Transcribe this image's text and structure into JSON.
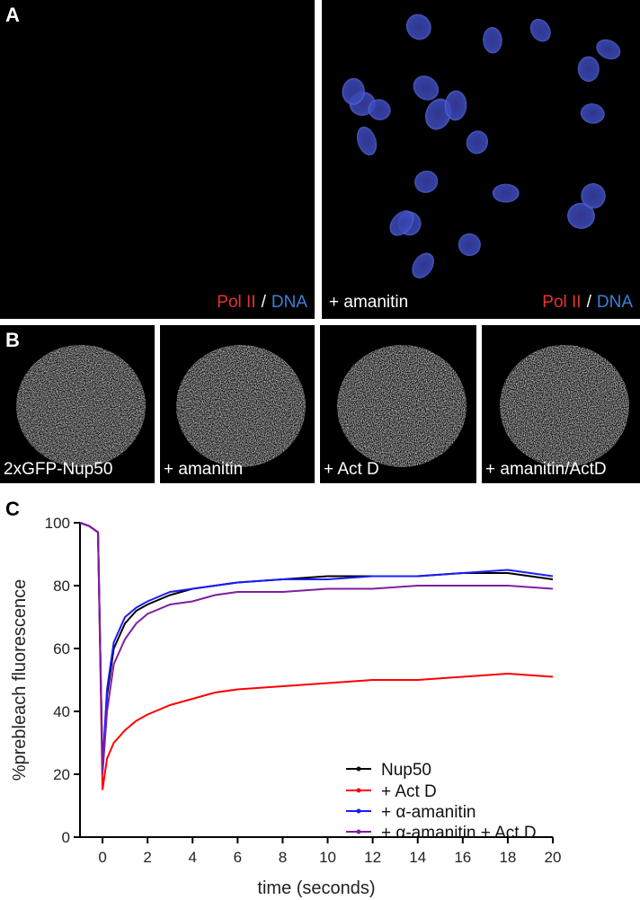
{
  "panel_a": {
    "label": "A",
    "left_caption": {
      "first": "Pol II",
      "separator": "/",
      "second": "DNA"
    },
    "right_treatment": "+ amanitin",
    "right_caption": {
      "first": "Pol II",
      "separator": "/",
      "second": "DNA"
    }
  },
  "panel_b": {
    "label": "B",
    "captions": [
      "2xGFP-Nup50",
      "+ amanitin",
      "+ Act D",
      "+ amanitin/ActD"
    ]
  },
  "chart_data": {
    "type": "line",
    "panel_label": "C",
    "x_label": "time (seconds)",
    "y_label": "%prebleach fluorescence",
    "x": [
      -1,
      -0.6,
      -0.2,
      0,
      0.2,
      0.5,
      1,
      1.5,
      2,
      3,
      4,
      5,
      6,
      8,
      10,
      12,
      14,
      16,
      18,
      20
    ],
    "series": [
      {
        "name": "Nup50",
        "color": "#000000",
        "values": [
          100,
          99,
          97,
          22,
          45,
          60,
          68,
          72,
          74,
          77,
          79,
          80,
          81,
          82,
          83,
          83,
          83,
          84,
          84,
          82
        ]
      },
      {
        "name": "+ Act D",
        "color": "#ff0000",
        "values": [
          100,
          99,
          97,
          15,
          25,
          30,
          34,
          37,
          39,
          42,
          44,
          46,
          47,
          48,
          49,
          50,
          50,
          51,
          52,
          51
        ]
      },
      {
        "name": "+ α-amanitin",
        "color": "#1c1cff",
        "values": [
          100,
          99,
          97,
          22,
          47,
          62,
          70,
          73,
          75,
          78,
          79,
          80,
          81,
          82,
          82,
          83,
          83,
          84,
          85,
          83
        ]
      },
      {
        "name": "+ α-amanitin + Act D",
        "color": "#7f1f9f",
        "values": [
          100,
          99,
          97,
          20,
          40,
          55,
          63,
          68,
          71,
          74,
          75,
          77,
          78,
          78,
          79,
          79,
          80,
          80,
          80,
          79
        ]
      }
    ],
    "xlim": [
      -1,
      20
    ],
    "ylim": [
      0,
      100
    ],
    "xticks": [
      0,
      2,
      4,
      6,
      8,
      10,
      12,
      14,
      16,
      18,
      20
    ],
    "yticks": [
      0,
      20,
      40,
      60,
      80,
      100
    ]
  }
}
